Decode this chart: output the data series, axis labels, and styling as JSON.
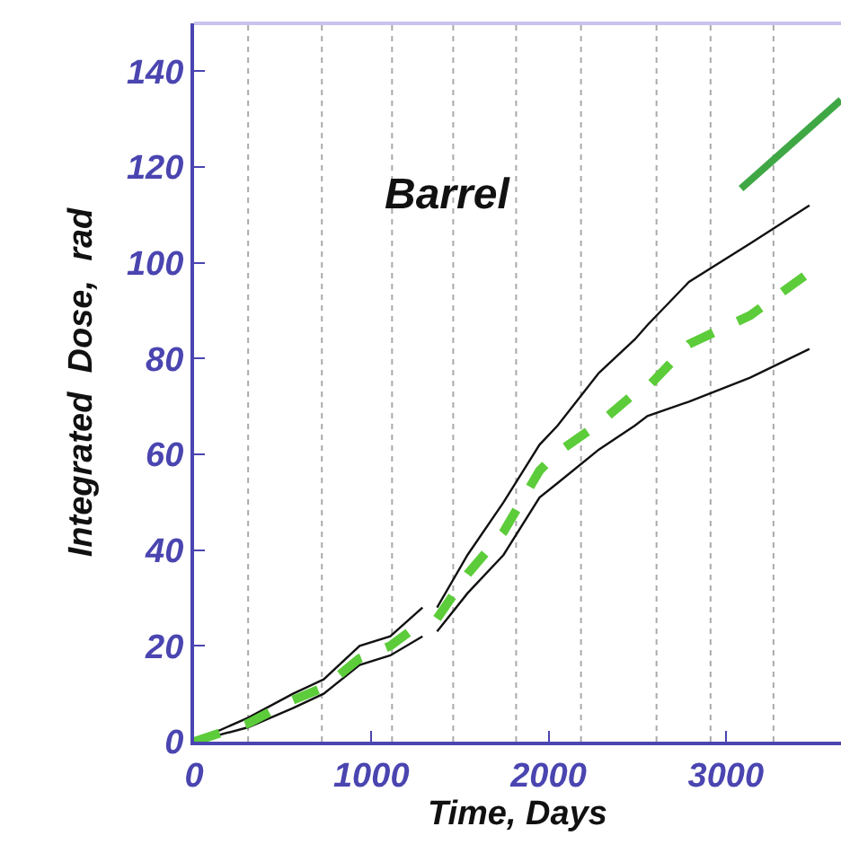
{
  "chart_data": {
    "type": "line",
    "xlabel": "Time, Days",
    "ylabel": "Integrated  Dose,  rad",
    "annotations": [
      "Barrel"
    ],
    "xlim": [
      0,
      3650
    ],
    "xticks": [
      0,
      1000,
      2000,
      3000
    ],
    "ylim": [
      0,
      150
    ],
    "yticks": [
      0,
      20,
      40,
      60,
      80,
      100,
      120,
      140
    ],
    "grid": false,
    "series": [
      {
        "color": "#111111",
        "line_style": "solid",
        "x": [
          0,
          305,
          558,
          731,
          934,
          1107,
          1289,
          1330,
          1371,
          1543,
          1746,
          1949,
          2051,
          2284,
          2487,
          2558,
          2792,
          3137,
          3472
        ],
        "values": [
          0,
          5,
          10,
          13,
          20,
          22,
          28,
          null,
          28,
          39,
          50,
          62,
          66,
          77,
          84,
          87,
          96,
          104,
          112
        ]
      },
      {
        "color": "#111111",
        "line_style": "solid",
        "x": [
          0,
          305,
          558,
          731,
          934,
          1107,
          1289,
          1330,
          1371,
          1543,
          1746,
          1949,
          2051,
          2284,
          2487,
          2558,
          2792,
          3137,
          3472
        ],
        "values": [
          0,
          3,
          7,
          10,
          16,
          18,
          22,
          null,
          23,
          31,
          39,
          51,
          54,
          61,
          66,
          68,
          71,
          76,
          82
        ]
      },
      {
        "color": "#5ccc3a",
        "line_style": "dashed",
        "x": [
          0,
          305,
          558,
          731,
          934,
          1107,
          1289,
          1330,
          1371,
          1543,
          1746,
          1949,
          2051,
          2284,
          2487,
          2558,
          2792,
          3137,
          3472
        ],
        "values": [
          0,
          3.8,
          8.7,
          11.3,
          17.4,
          20,
          25,
          null,
          25.7,
          35,
          43.8,
          56.6,
          60.4,
          66.4,
          72.8,
          74,
          83,
          89,
          98
        ]
      },
      {
        "color": "#3fa845",
        "line_style": "solid",
        "x": [
          3086,
          3650
        ],
        "values": [
          115.5,
          134
        ]
      }
    ],
    "ref_lines": [
      {
        "axis": "x",
        "value": 305,
        "color": "#aaaaaa",
        "line_style": "dotted"
      },
      {
        "axis": "x",
        "value": 721,
        "color": "#aaaaaa",
        "line_style": "dotted"
      },
      {
        "axis": "x",
        "value": 1117,
        "color": "#aaaaaa",
        "line_style": "dotted"
      },
      {
        "axis": "x",
        "value": 1462,
        "color": "#aaaaaa",
        "line_style": "dotted"
      },
      {
        "axis": "x",
        "value": 1817,
        "color": "#aaaaaa",
        "line_style": "dotted"
      },
      {
        "axis": "x",
        "value": 2183,
        "color": "#aaaaaa",
        "line_style": "dotted"
      },
      {
        "axis": "x",
        "value": 2609,
        "color": "#aaaaaa",
        "line_style": "dotted"
      },
      {
        "axis": "x",
        "value": 2914,
        "color": "#aaaaaa",
        "line_style": "dotted"
      },
      {
        "axis": "x",
        "value": 3269,
        "color": "#aaaaaa",
        "line_style": "dotted"
      }
    ]
  }
}
